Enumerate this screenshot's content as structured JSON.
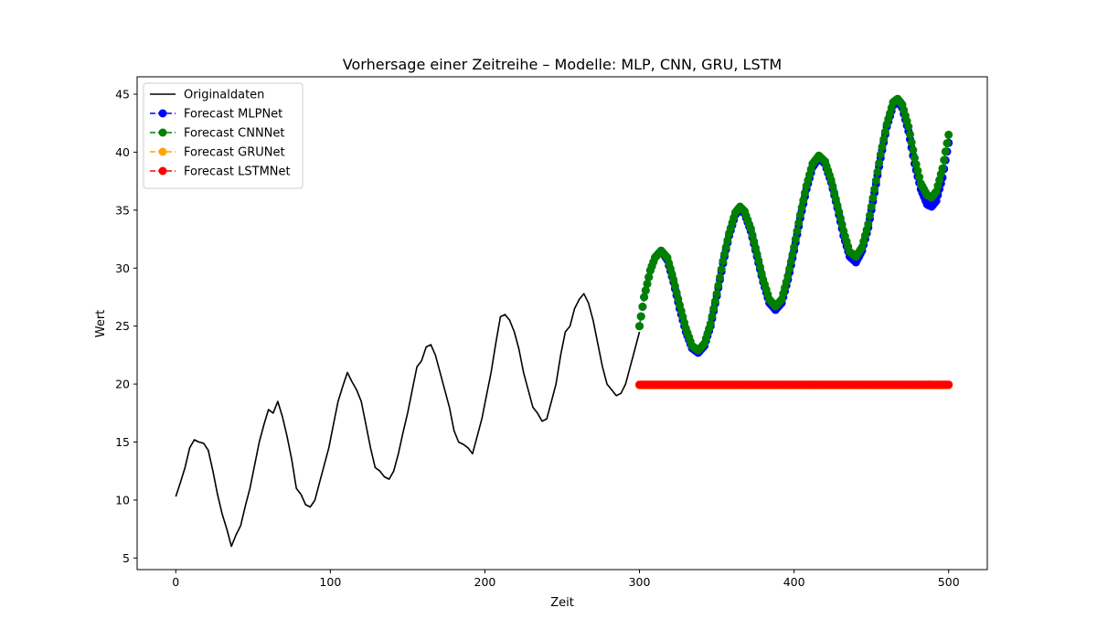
{
  "chart_data": {
    "type": "line",
    "title": "Vorhersage einer Zeitreihe – Modelle: MLP, CNN, GRU, LSTM",
    "xlabel": "Zeit",
    "ylabel": "Wert",
    "xlim": [
      -25,
      525
    ],
    "ylim": [
      4,
      46.5
    ],
    "xticks": [
      0,
      100,
      200,
      300,
      400,
      500
    ],
    "yticks": [
      5,
      10,
      15,
      20,
      25,
      30,
      35,
      40,
      45
    ],
    "grid": false,
    "legend_position": "upper-left",
    "original": {
      "name": "Originaldaten",
      "color": "#000000",
      "points": [
        [
          0,
          10.3
        ],
        [
          3,
          11.5
        ],
        [
          6,
          12.8
        ],
        [
          9,
          14.5
        ],
        [
          12,
          15.2
        ],
        [
          15,
          15.0
        ],
        [
          18,
          14.9
        ],
        [
          21,
          14.3
        ],
        [
          24,
          12.5
        ],
        [
          27,
          10.5
        ],
        [
          30,
          8.8
        ],
        [
          33,
          7.5
        ],
        [
          36,
          6.0
        ],
        [
          39,
          7.0
        ],
        [
          42,
          7.8
        ],
        [
          45,
          9.5
        ],
        [
          48,
          11.0
        ],
        [
          51,
          13.0
        ],
        [
          54,
          15.0
        ],
        [
          57,
          16.5
        ],
        [
          60,
          17.8
        ],
        [
          63,
          17.5
        ],
        [
          66,
          18.5
        ],
        [
          69,
          17.2
        ],
        [
          72,
          15.5
        ],
        [
          75,
          13.5
        ],
        [
          78,
          11.0
        ],
        [
          81,
          10.5
        ],
        [
          84,
          9.6
        ],
        [
          87,
          9.4
        ],
        [
          90,
          10.0
        ],
        [
          93,
          11.5
        ],
        [
          96,
          13.0
        ],
        [
          99,
          14.5
        ],
        [
          102,
          16.5
        ],
        [
          105,
          18.5
        ],
        [
          108,
          19.8
        ],
        [
          111,
          21.0
        ],
        [
          114,
          20.2
        ],
        [
          117,
          19.5
        ],
        [
          120,
          18.5
        ],
        [
          123,
          16.5
        ],
        [
          126,
          14.5
        ],
        [
          129,
          12.8
        ],
        [
          132,
          12.5
        ],
        [
          135,
          12.0
        ],
        [
          138,
          11.8
        ],
        [
          141,
          12.5
        ],
        [
          144,
          14.0
        ],
        [
          147,
          15.8
        ],
        [
          150,
          17.5
        ],
        [
          153,
          19.5
        ],
        [
          156,
          21.5
        ],
        [
          159,
          22.0
        ],
        [
          162,
          23.2
        ],
        [
          165,
          23.4
        ],
        [
          168,
          22.5
        ],
        [
          171,
          21.0
        ],
        [
          174,
          19.5
        ],
        [
          177,
          18.0
        ],
        [
          180,
          16.0
        ],
        [
          183,
          15.0
        ],
        [
          186,
          14.8
        ],
        [
          189,
          14.5
        ],
        [
          192,
          14.0
        ],
        [
          195,
          15.5
        ],
        [
          198,
          17.0
        ],
        [
          201,
          19.0
        ],
        [
          204,
          21.0
        ],
        [
          207,
          23.5
        ],
        [
          210,
          25.8
        ],
        [
          213,
          26.0
        ],
        [
          216,
          25.5
        ],
        [
          219,
          24.5
        ],
        [
          222,
          23.0
        ],
        [
          225,
          21.0
        ],
        [
          228,
          19.5
        ],
        [
          231,
          18.0
        ],
        [
          234,
          17.5
        ],
        [
          237,
          16.8
        ],
        [
          240,
          17.0
        ],
        [
          243,
          18.5
        ],
        [
          246,
          20.0
        ],
        [
          249,
          22.5
        ],
        [
          252,
          24.5
        ],
        [
          255,
          25.0
        ],
        [
          258,
          26.5
        ],
        [
          261,
          27.3
        ],
        [
          264,
          27.8
        ],
        [
          267,
          27.0
        ],
        [
          270,
          25.5
        ],
        [
          273,
          23.5
        ],
        [
          276,
          21.5
        ],
        [
          279,
          20.0
        ],
        [
          282,
          19.5
        ],
        [
          285,
          19.0
        ],
        [
          288,
          19.2
        ],
        [
          291,
          20.0
        ],
        [
          294,
          21.5
        ],
        [
          297,
          23.0
        ],
        [
          300,
          24.5
        ]
      ]
    },
    "series": [
      {
        "name": "Forecast MLPNet",
        "color": "#0000ff",
        "x_start": 300,
        "x_end": 500,
        "points": [
          [
            300,
            25.0
          ],
          [
            303,
            27.5
          ],
          [
            307,
            29.8
          ],
          [
            310,
            30.9
          ],
          [
            314,
            31.5
          ],
          [
            318,
            30.7
          ],
          [
            322,
            28.8
          ],
          [
            326,
            26.5
          ],
          [
            330,
            24.5
          ],
          [
            334,
            23.1
          ],
          [
            338,
            22.7
          ],
          [
            342,
            23.3
          ],
          [
            346,
            25.0
          ],
          [
            350,
            27.6
          ],
          [
            354,
            30.4
          ],
          [
            358,
            32.8
          ],
          [
            362,
            34.6
          ],
          [
            365,
            35.1
          ],
          [
            368,
            34.7
          ],
          [
            372,
            33.2
          ],
          [
            376,
            31.0
          ],
          [
            380,
            28.8
          ],
          [
            384,
            27.0
          ],
          [
            388,
            26.4
          ],
          [
            392,
            27.0
          ],
          [
            396,
            29.0
          ],
          [
            400,
            31.5
          ],
          [
            404,
            34.3
          ],
          [
            408,
            36.8
          ],
          [
            412,
            38.7
          ],
          [
            416,
            39.5
          ],
          [
            420,
            39.0
          ],
          [
            424,
            37.4
          ],
          [
            428,
            35.2
          ],
          [
            432,
            32.8
          ],
          [
            436,
            31.0
          ],
          [
            440,
            30.5
          ],
          [
            444,
            31.5
          ],
          [
            448,
            33.5
          ],
          [
            452,
            36.5
          ],
          [
            456,
            39.5
          ],
          [
            460,
            42.2
          ],
          [
            464,
            44.0
          ],
          [
            467,
            44.5
          ],
          [
            470,
            43.8
          ],
          [
            474,
            41.8
          ],
          [
            478,
            39.0
          ],
          [
            482,
            36.8
          ],
          [
            486,
            35.5
          ],
          [
            489,
            35.3
          ],
          [
            492,
            35.8
          ],
          [
            496,
            37.8
          ],
          [
            500,
            40.8
          ]
        ]
      },
      {
        "name": "Forecast CNNNet",
        "color": "#008000",
        "x_start": 300,
        "x_end": 500,
        "points": [
          [
            300,
            25.0
          ],
          [
            303,
            27.5
          ],
          [
            307,
            29.8
          ],
          [
            310,
            30.9
          ],
          [
            314,
            31.5
          ],
          [
            318,
            30.9
          ],
          [
            322,
            29.0
          ],
          [
            326,
            26.8
          ],
          [
            330,
            24.8
          ],
          [
            334,
            23.3
          ],
          [
            338,
            22.9
          ],
          [
            342,
            23.5
          ],
          [
            346,
            25.2
          ],
          [
            350,
            27.8
          ],
          [
            354,
            30.6
          ],
          [
            358,
            33.0
          ],
          [
            362,
            34.8
          ],
          [
            365,
            35.3
          ],
          [
            368,
            34.9
          ],
          [
            372,
            33.4
          ],
          [
            376,
            31.2
          ],
          [
            380,
            29.0
          ],
          [
            384,
            27.3
          ],
          [
            388,
            26.7
          ],
          [
            392,
            27.3
          ],
          [
            396,
            29.3
          ],
          [
            400,
            31.8
          ],
          [
            404,
            34.6
          ],
          [
            408,
            37.1
          ],
          [
            412,
            39.0
          ],
          [
            416,
            39.7
          ],
          [
            420,
            39.2
          ],
          [
            424,
            37.6
          ],
          [
            428,
            35.4
          ],
          [
            432,
            33.2
          ],
          [
            436,
            31.4
          ],
          [
            440,
            31.0
          ],
          [
            444,
            31.8
          ],
          [
            448,
            33.8
          ],
          [
            452,
            36.8
          ],
          [
            456,
            39.8
          ],
          [
            460,
            42.4
          ],
          [
            464,
            44.3
          ],
          [
            467,
            44.6
          ],
          [
            470,
            44.1
          ],
          [
            474,
            42.2
          ],
          [
            478,
            39.5
          ],
          [
            482,
            37.3
          ],
          [
            486,
            36.3
          ],
          [
            489,
            36.1
          ],
          [
            492,
            36.6
          ],
          [
            496,
            38.6
          ],
          [
            500,
            41.5
          ]
        ]
      },
      {
        "name": "Forecast GRUNet",
        "color": "#ffa500",
        "x_start": 300,
        "x_end": 500,
        "constant": 19.9
      },
      {
        "name": "Forecast LSTMNet",
        "color": "#ff0000",
        "x_start": 300,
        "x_end": 500,
        "constant": 19.95
      }
    ]
  }
}
